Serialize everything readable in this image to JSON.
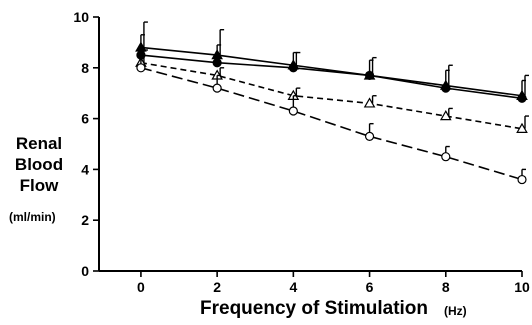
{
  "chart_data": {
    "type": "line",
    "title": "",
    "ylabel_lines": [
      "Renal",
      "Blood",
      "Flow"
    ],
    "yunit": "(ml/min)",
    "xlabel": "Frequency of Stimulation",
    "xunit": "(Hz)",
    "xlim": [
      -1.1,
      10
    ],
    "ylim": [
      0,
      10
    ],
    "xticks": [
      0,
      2,
      4,
      6,
      8,
      10
    ],
    "yticks": [
      0,
      2,
      4,
      6,
      8,
      10
    ],
    "grid": false,
    "series": [
      {
        "marker": "triangle-filled",
        "line": "solid",
        "color": "#000000",
        "x": [
          0,
          2,
          4,
          6,
          8,
          10
        ],
        "y": [
          8.8,
          8.5,
          8.1,
          7.7,
          7.3,
          6.9
        ],
        "err": [
          1.0,
          1.0,
          0.5,
          0.7,
          0.8,
          0.8
        ]
      },
      {
        "marker": "circle-filled",
        "line": "solid",
        "color": "#000000",
        "x": [
          0,
          2,
          4,
          6,
          8,
          10
        ],
        "y": [
          8.5,
          8.2,
          8.0,
          7.7,
          7.2,
          6.8
        ],
        "err": [
          0.8,
          0.7,
          0.6,
          0.6,
          0.7,
          0.7
        ]
      },
      {
        "marker": "triangle-open",
        "line": "dashed",
        "color": "#000000",
        "x": [
          0,
          2,
          4,
          6,
          8,
          10
        ],
        "y": [
          8.2,
          7.7,
          6.9,
          6.6,
          6.1,
          5.6
        ],
        "err": [
          0.5,
          0.3,
          0.3,
          0.3,
          0.3,
          0.5
        ]
      },
      {
        "marker": "circle-open",
        "line": "long-dash",
        "color": "#000000",
        "x": [
          0,
          2,
          4,
          6,
          8,
          10
        ],
        "y": [
          8.0,
          7.2,
          6.3,
          5.3,
          4.5,
          3.6
        ],
        "err": [
          0.5,
          0.5,
          0.6,
          0.5,
          0.4,
          0.4
        ]
      }
    ]
  }
}
